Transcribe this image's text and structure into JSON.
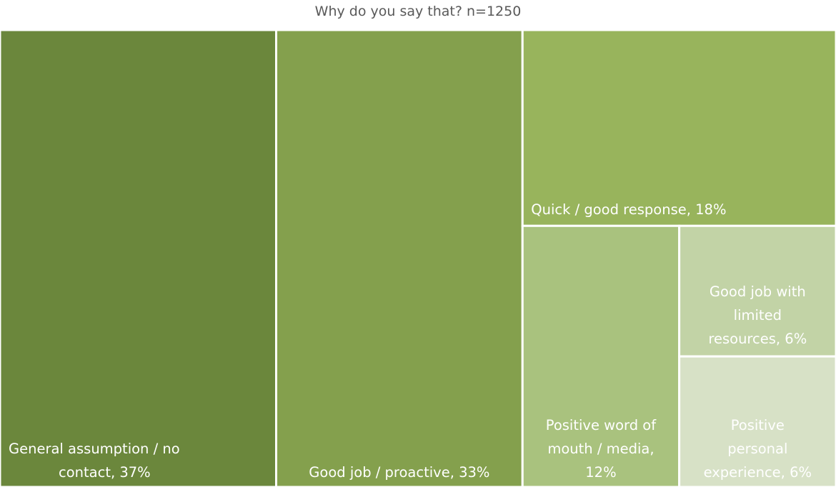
{
  "title": "Why do you say that? n=1250",
  "colors": {
    "general": "#6b873c",
    "goodjob": "#84a04d",
    "quick": "#98b45c",
    "wordofmouth": "#a9c27e",
    "limited": "#c2d3a6",
    "personal": "#d7e1c6"
  },
  "chart_data": {
    "type": "treemap",
    "title": "Why do you say that? n=1250",
    "items": [
      {
        "id": "general",
        "label": "General assumption / no contact, 37%",
        "lines": [
          "General assumption / no",
          "contact, 37%"
        ],
        "value": 37
      },
      {
        "id": "goodjob",
        "label": "Good job / proactive, 33%",
        "lines": [
          "Good job / proactive, 33%"
        ],
        "value": 33
      },
      {
        "id": "quick",
        "label": "Quick / good response, 18%",
        "lines": [
          "Quick / good response, 18%"
        ],
        "value": 18
      },
      {
        "id": "wordofmouth",
        "label": "Positive word of mouth / media, 12%",
        "lines": [
          "Positive word of",
          "mouth / media,",
          "12%"
        ],
        "value": 12
      },
      {
        "id": "limited",
        "label": "Good job with limited resources, 6%",
        "lines": [
          "Good job with",
          "limited",
          "resources, 6%"
        ],
        "value": 6
      },
      {
        "id": "personal",
        "label": "Positive personal experience, 6%",
        "lines": [
          "Positive",
          "personal",
          "experience, 6%"
        ],
        "value": 6
      }
    ]
  }
}
